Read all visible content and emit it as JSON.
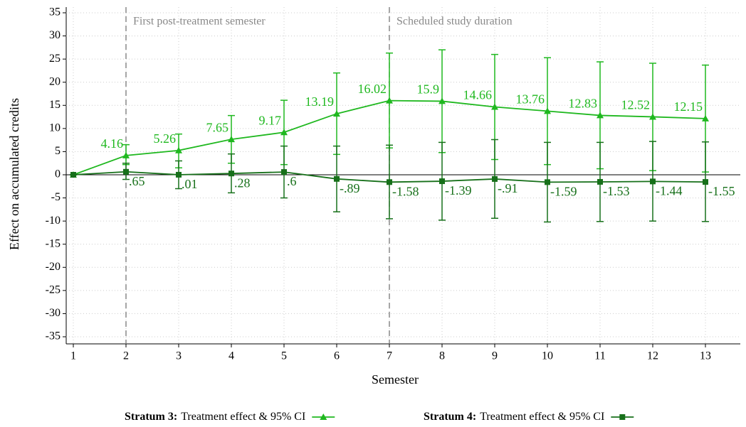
{
  "chart_data": {
    "type": "line",
    "x_label": "Semester",
    "y_label": "Effect on accumulated credits",
    "x": [
      1,
      2,
      3,
      4,
      5,
      6,
      7,
      8,
      9,
      10,
      11,
      12,
      13
    ],
    "xlim": [
      1,
      13
    ],
    "xticks": [
      1,
      2,
      3,
      4,
      5,
      6,
      7,
      8,
      9,
      10,
      11,
      12,
      13
    ],
    "ylim": [
      -35,
      35
    ],
    "yticks": [
      -35,
      -30,
      -25,
      -20,
      -15,
      -10,
      -5,
      0,
      5,
      10,
      15,
      20,
      25,
      30,
      35
    ],
    "grid": true,
    "reference_lines": [
      {
        "x": 2,
        "label": "First post-treatment semester"
      },
      {
        "x": 7,
        "label": "Scheduled study duration"
      }
    ],
    "series": [
      {
        "name": "Stratum 3:",
        "legend_text": "Treatment effect & 95% CI",
        "color": "#1fb81f",
        "marker": "triangle",
        "values": [
          0,
          4.16,
          5.26,
          7.65,
          9.17,
          13.19,
          16.02,
          15.9,
          14.66,
          13.76,
          12.83,
          12.52,
          12.15
        ],
        "value_labels": [
          null,
          "4.16",
          "5.26",
          "7.65",
          "9.17",
          "13.19",
          "16.02",
          "15.9",
          "14.66",
          "13.76",
          "12.83",
          "12.52",
          "12.15"
        ],
        "ci_lower": [
          0,
          2.2,
          1.5,
          2.5,
          2.2,
          4.4,
          5.8,
          4.8,
          3.3,
          2.2,
          1.3,
          0.9,
          0.6
        ],
        "ci_upper": [
          0,
          6.5,
          8.8,
          12.8,
          16.1,
          22,
          26.3,
          27,
          26,
          25.3,
          24.4,
          24.1,
          23.7
        ]
      },
      {
        "name": "Stratum 4:",
        "legend_text": "Treatment effect & 95% CI",
        "color": "#17701a",
        "marker": "square",
        "values": [
          0,
          0.65,
          0.01,
          0.28,
          0.6,
          -0.89,
          -1.58,
          -1.39,
          -0.91,
          -1.59,
          -1.53,
          -1.44,
          -1.55
        ],
        "value_labels": [
          null,
          ".65",
          ".01",
          ".28",
          ".6",
          "-.89",
          "-1.58",
          "-1.39",
          "-.91",
          "-1.59",
          "-1.53",
          "-1.44",
          "-1.55"
        ],
        "ci_lower": [
          0,
          -1.0,
          -3,
          -3.9,
          -5,
          -8,
          -9.5,
          -9.8,
          -9.4,
          -10.2,
          -10.1,
          -10,
          -10.1
        ],
        "ci_upper": [
          0,
          2.5,
          3,
          4.5,
          6.2,
          6.2,
          6.4,
          7,
          7.6,
          7,
          7,
          7.2,
          7.1
        ]
      }
    ]
  }
}
